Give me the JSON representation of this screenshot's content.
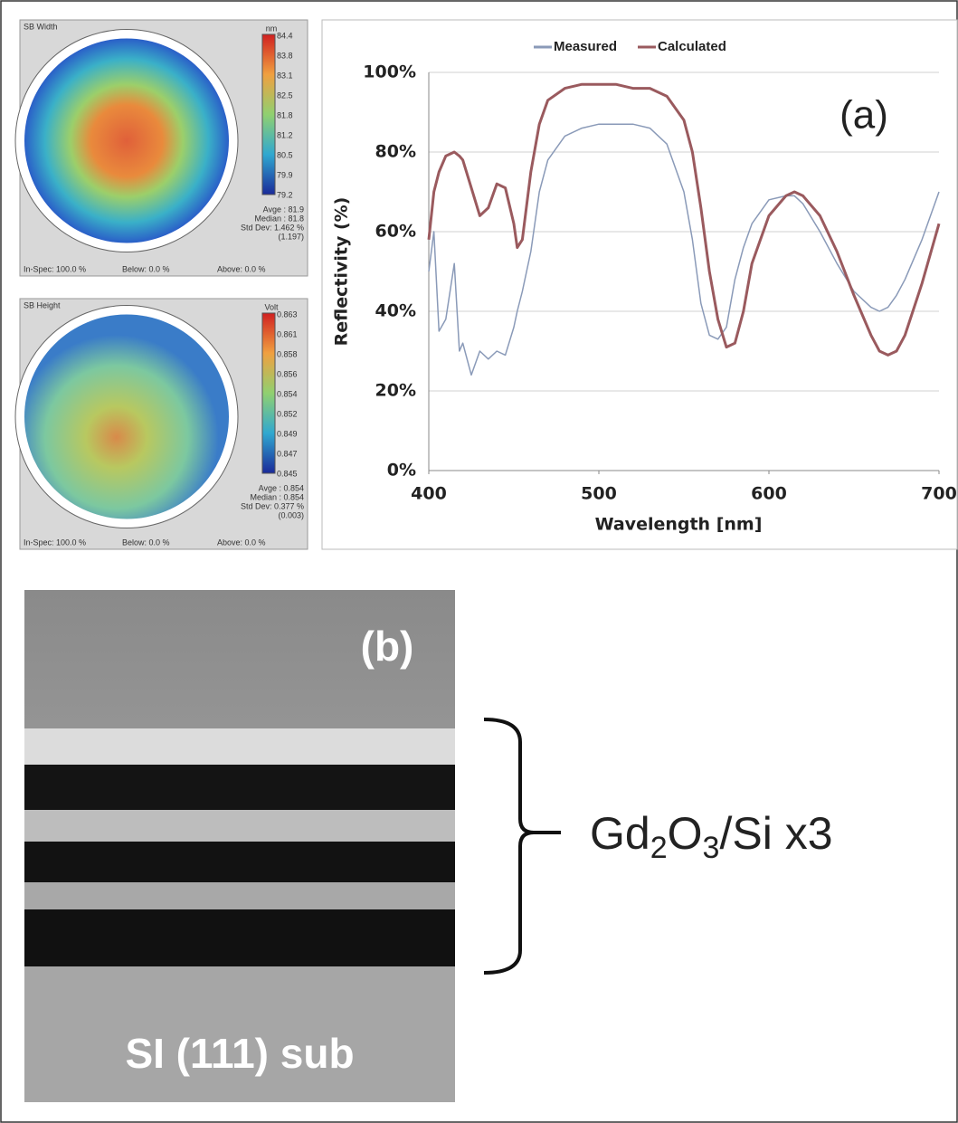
{
  "chart_data": {
    "type": "line",
    "legend": "top",
    "grid": true,
    "x_label": "Wavelength [nm]",
    "y_label": "Reflectivity (%)",
    "annotation": "(a)",
    "x": [
      400,
      403,
      406,
      410,
      415,
      418,
      420,
      425,
      430,
      435,
      440,
      445,
      450,
      452,
      455,
      460,
      465,
      470,
      480,
      490,
      500,
      510,
      520,
      530,
      540,
      550,
      555,
      560,
      565,
      570,
      575,
      580,
      585,
      590,
      600,
      610,
      615,
      620,
      630,
      640,
      650,
      660,
      665,
      670,
      675,
      680,
      690,
      700
    ],
    "series": [
      {
        "name": "Measured",
        "color": "#8a9ab8",
        "values": [
          50,
          60,
          35,
          38,
          52,
          30,
          32,
          24,
          30,
          28,
          30,
          29,
          36,
          40,
          45,
          55,
          70,
          78,
          84,
          86,
          87,
          87,
          87,
          86,
          82,
          70,
          58,
          42,
          34,
          33,
          36,
          48,
          56,
          62,
          68,
          69,
          69,
          67,
          60,
          52,
          45,
          41,
          40,
          41,
          44,
          48,
          58,
          70
        ]
      },
      {
        "name": "Calculated",
        "color": "#9a5a5e",
        "values": [
          58,
          70,
          75,
          79,
          80,
          79,
          78,
          71,
          64,
          66,
          72,
          71,
          62,
          56,
          58,
          75,
          87,
          93,
          96,
          97,
          97,
          97,
          96,
          96,
          94,
          88,
          80,
          66,
          50,
          38,
          31,
          32,
          40,
          52,
          64,
          69,
          70,
          69,
          64,
          55,
          44,
          34,
          30,
          29,
          30,
          34,
          47,
          62
        ]
      }
    ],
    "xlim": [
      400,
      700
    ],
    "xticks": [
      400,
      500,
      600,
      700
    ],
    "ylim": [
      0,
      100
    ],
    "yticks": [
      {
        "value": 0,
        "label": "0%"
      },
      {
        "value": 20,
        "label": "20%"
      },
      {
        "value": 40,
        "label": "40%"
      },
      {
        "value": 60,
        "label": "60%"
      },
      {
        "value": 80,
        "label": "80%"
      },
      {
        "value": 100,
        "label": "100%"
      }
    ]
  },
  "maps": [
    {
      "title": "SB Width",
      "unit": "nm",
      "scale": [
        "84.4",
        "83.8",
        "83.1",
        "82.5",
        "81.8",
        "81.2",
        "80.5",
        "79.9",
        "79.2"
      ],
      "stats": [
        "Avge  :  81.9",
        "Median :  81.8",
        "Std Dev: 1.462 %",
        "(1.197)"
      ],
      "footer": [
        "In-Spec: 100.0 %",
        "Below:  0.0 %",
        "Above:  0.0 %"
      ]
    },
    {
      "title": "SB Height",
      "unit": "Volt",
      "scale": [
        "0.863",
        "0.861",
        "0.858",
        "0.856",
        "0.854",
        "0.852",
        "0.849",
        "0.847",
        "0.845"
      ],
      "stats": [
        "Avge  :  0.854",
        "Median :  0.854",
        "Std Dev: 0.377 %",
        "(0.003)"
      ],
      "footer": [
        "In-Spec: 100.0 %",
        "Below:  0.0 %",
        "Above:  0.0 %"
      ]
    }
  ],
  "tem": {
    "label": "(b)",
    "substrate": "SI (111) sub",
    "stack_parts": [
      "Gd",
      "2",
      "O",
      "3",
      "/Si x3"
    ]
  }
}
